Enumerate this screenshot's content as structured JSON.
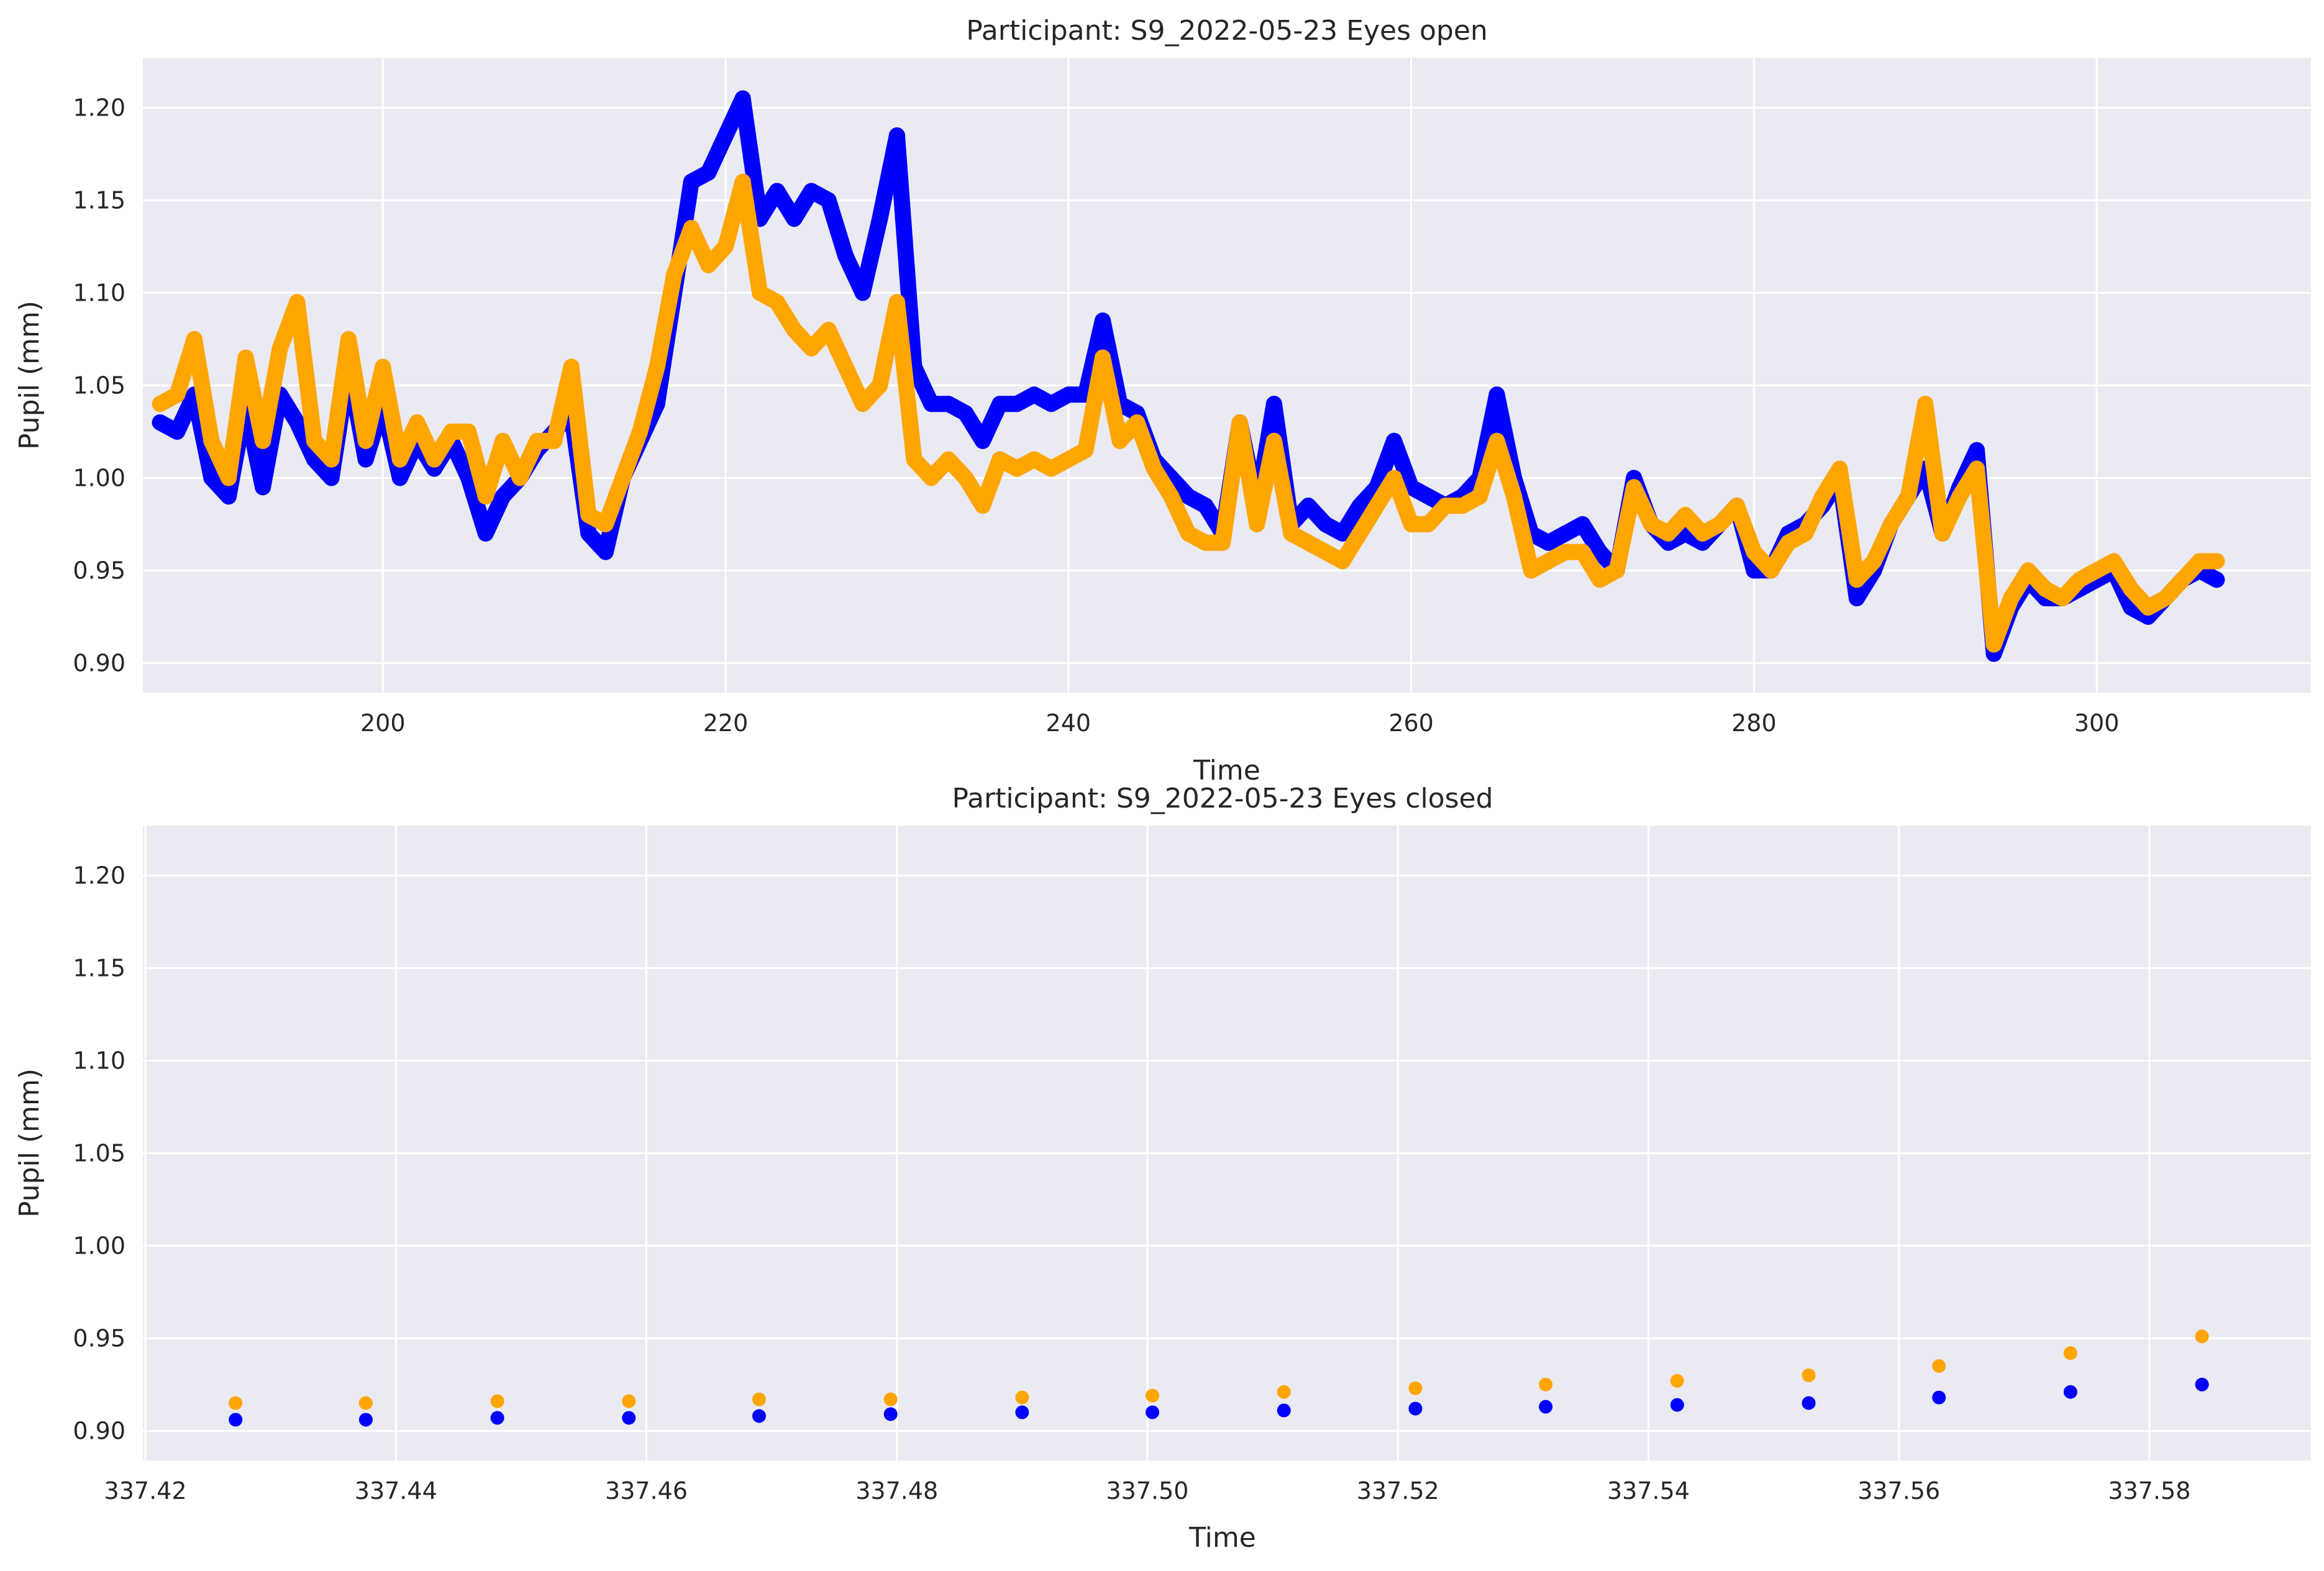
{
  "colors": {
    "background": "#eaeaf2",
    "grid": "#ffffff",
    "series_right": "#0000ff",
    "series_left": "#ffa500"
  },
  "chart_data": [
    {
      "type": "scatter",
      "title": "Participant: S9_2022-05-23 Eyes open",
      "xlabel": "Time",
      "ylabel": "Pupil (mm)",
      "xlim": [
        186,
        312.5
      ],
      "ylim": [
        0.884,
        1.227
      ],
      "xticks": [
        200,
        220,
        240,
        260,
        280,
        300
      ],
      "xtick_labels": [
        "200",
        "220",
        "240",
        "260",
        "280",
        "300"
      ],
      "yticks": [
        0.9,
        0.95,
        1.0,
        1.05,
        1.1,
        1.15,
        1.2
      ],
      "ytick_labels": [
        "0.90",
        "0.95",
        "1.00",
        "1.05",
        "1.10",
        "1.15",
        "1.20"
      ],
      "grid": true,
      "series": [
        {
          "color": "#0000ff",
          "points": [
            [
              187,
              1.03
            ],
            [
              188,
              1.025
            ],
            [
              189,
              1.045
            ],
            [
              190,
              1.0
            ],
            [
              191,
              0.99
            ],
            [
              192,
              1.04
            ],
            [
              193,
              0.995
            ],
            [
              194,
              1.045
            ],
            [
              195,
              1.03
            ],
            [
              196,
              1.01
            ],
            [
              197,
              1.0
            ],
            [
              198,
              1.06
            ],
            [
              199,
              1.01
            ],
            [
              200,
              1.04
            ],
            [
              201,
              1.0
            ],
            [
              202,
              1.02
            ],
            [
              203,
              1.005
            ],
            [
              204,
              1.02
            ],
            [
              205,
              1.0
            ],
            [
              206,
              0.97
            ],
            [
              207,
              0.99
            ],
            [
              208,
              1.0
            ],
            [
              209,
              1.015
            ],
            [
              210,
              1.025
            ],
            [
              211,
              1.035
            ],
            [
              212,
              0.97
            ],
            [
              213,
              0.96
            ],
            [
              214,
              1.0
            ],
            [
              215,
              1.02
            ],
            [
              216,
              1.04
            ],
            [
              217,
              1.1
            ],
            [
              218,
              1.16
            ],
            [
              219,
              1.165
            ],
            [
              220,
              1.185
            ],
            [
              221,
              1.205
            ],
            [
              222,
              1.14
            ],
            [
              223,
              1.155
            ],
            [
              224,
              1.14
            ],
            [
              225,
              1.155
            ],
            [
              226,
              1.15
            ],
            [
              227,
              1.12
            ],
            [
              228,
              1.1
            ],
            [
              229,
              1.14
            ],
            [
              230,
              1.185
            ],
            [
              231,
              1.06
            ],
            [
              232,
              1.04
            ],
            [
              233,
              1.04
            ],
            [
              234,
              1.035
            ],
            [
              235,
              1.02
            ],
            [
              236,
              1.04
            ],
            [
              237,
              1.04
            ],
            [
              238,
              1.045
            ],
            [
              239,
              1.04
            ],
            [
              240,
              1.045
            ],
            [
              241,
              1.045
            ],
            [
              242,
              1.085
            ],
            [
              243,
              1.04
            ],
            [
              244,
              1.035
            ],
            [
              245,
              1.01
            ],
            [
              246,
              1.0
            ],
            [
              247,
              0.99
            ],
            [
              248,
              0.985
            ],
            [
              249,
              0.97
            ],
            [
              250,
              1.03
            ],
            [
              251,
              0.985
            ],
            [
              252,
              1.04
            ],
            [
              253,
              0.975
            ],
            [
              254,
              0.985
            ],
            [
              255,
              0.975
            ],
            [
              256,
              0.97
            ],
            [
              257,
              0.985
            ],
            [
              258,
              0.995
            ],
            [
              259,
              1.02
            ],
            [
              260,
              0.995
            ],
            [
              261,
              0.99
            ],
            [
              262,
              0.985
            ],
            [
              263,
              0.99
            ],
            [
              264,
              1.0
            ],
            [
              265,
              1.045
            ],
            [
              266,
              1.0
            ],
            [
              267,
              0.97
            ],
            [
              268,
              0.965
            ],
            [
              269,
              0.97
            ],
            [
              270,
              0.975
            ],
            [
              271,
              0.96
            ],
            [
              272,
              0.95
            ],
            [
              273,
              1.0
            ],
            [
              274,
              0.975
            ],
            [
              275,
              0.965
            ],
            [
              276,
              0.97
            ],
            [
              277,
              0.965
            ],
            [
              278,
              0.975
            ],
            [
              279,
              0.985
            ],
            [
              280,
              0.95
            ],
            [
              281,
              0.95
            ],
            [
              282,
              0.97
            ],
            [
              283,
              0.975
            ],
            [
              284,
              0.985
            ],
            [
              285,
              1.0
            ],
            [
              286,
              0.935
            ],
            [
              287,
              0.95
            ],
            [
              288,
              0.975
            ],
            [
              289,
              0.99
            ],
            [
              290,
              1.005
            ],
            [
              291,
              0.97
            ],
            [
              292,
              0.995
            ],
            [
              293,
              1.015
            ],
            [
              294,
              0.905
            ],
            [
              295,
              0.93
            ],
            [
              296,
              0.945
            ],
            [
              297,
              0.935
            ],
            [
              298,
              0.935
            ],
            [
              299,
              0.94
            ],
            [
              300,
              0.945
            ],
            [
              301,
              0.95
            ],
            [
              302,
              0.93
            ],
            [
              303,
              0.925
            ],
            [
              304,
              0.935
            ],
            [
              305,
              0.945
            ],
            [
              306,
              0.95
            ],
            [
              307,
              0.945
            ]
          ]
        },
        {
          "color": "#ffa500",
          "points": [
            [
              187,
              1.04
            ],
            [
              188,
              1.045
            ],
            [
              189,
              1.075
            ],
            [
              190,
              1.02
            ],
            [
              191,
              1.0
            ],
            [
              192,
              1.065
            ],
            [
              193,
              1.02
            ],
            [
              194,
              1.07
            ],
            [
              195,
              1.095
            ],
            [
              196,
              1.02
            ],
            [
              197,
              1.01
            ],
            [
              198,
              1.075
            ],
            [
              199,
              1.02
            ],
            [
              200,
              1.06
            ],
            [
              201,
              1.01
            ],
            [
              202,
              1.03
            ],
            [
              203,
              1.01
            ],
            [
              204,
              1.025
            ],
            [
              205,
              1.025
            ],
            [
              206,
              0.99
            ],
            [
              207,
              1.02
            ],
            [
              208,
              1.0
            ],
            [
              209,
              1.02
            ],
            [
              210,
              1.02
            ],
            [
              211,
              1.06
            ],
            [
              212,
              0.98
            ],
            [
              213,
              0.975
            ],
            [
              214,
              1.0
            ],
            [
              215,
              1.025
            ],
            [
              216,
              1.06
            ],
            [
              217,
              1.11
            ],
            [
              218,
              1.135
            ],
            [
              219,
              1.115
            ],
            [
              220,
              1.125
            ],
            [
              221,
              1.16
            ],
            [
              222,
              1.1
            ],
            [
              223,
              1.095
            ],
            [
              224,
              1.08
            ],
            [
              225,
              1.07
            ],
            [
              226,
              1.08
            ],
            [
              227,
              1.06
            ],
            [
              228,
              1.04
            ],
            [
              229,
              1.05
            ],
            [
              230,
              1.095
            ],
            [
              231,
              1.01
            ],
            [
              232,
              1.0
            ],
            [
              233,
              1.01
            ],
            [
              234,
              1.0
            ],
            [
              235,
              0.985
            ],
            [
              236,
              1.01
            ],
            [
              237,
              1.005
            ],
            [
              238,
              1.01
            ],
            [
              239,
              1.005
            ],
            [
              240,
              1.01
            ],
            [
              241,
              1.015
            ],
            [
              242,
              1.065
            ],
            [
              243,
              1.02
            ],
            [
              244,
              1.03
            ],
            [
              245,
              1.005
            ],
            [
              246,
              0.99
            ],
            [
              247,
              0.97
            ],
            [
              248,
              0.965
            ],
            [
              249,
              0.965
            ],
            [
              250,
              1.03
            ],
            [
              251,
              0.975
            ],
            [
              252,
              1.02
            ],
            [
              253,
              0.97
            ],
            [
              254,
              0.965
            ],
            [
              255,
              0.96
            ],
            [
              256,
              0.955
            ],
            [
              257,
              0.97
            ],
            [
              258,
              0.985
            ],
            [
              259,
              1.0
            ],
            [
              260,
              0.975
            ],
            [
              261,
              0.975
            ],
            [
              262,
              0.985
            ],
            [
              263,
              0.985
            ],
            [
              264,
              0.99
            ],
            [
              265,
              1.02
            ],
            [
              266,
              0.99
            ],
            [
              267,
              0.95
            ],
            [
              268,
              0.955
            ],
            [
              269,
              0.96
            ],
            [
              270,
              0.96
            ],
            [
              271,
              0.945
            ],
            [
              272,
              0.95
            ],
            [
              273,
              0.995
            ],
            [
              274,
              0.975
            ],
            [
              275,
              0.97
            ],
            [
              276,
              0.98
            ],
            [
              277,
              0.97
            ],
            [
              278,
              0.975
            ],
            [
              279,
              0.985
            ],
            [
              280,
              0.96
            ],
            [
              281,
              0.95
            ],
            [
              282,
              0.965
            ],
            [
              283,
              0.97
            ],
            [
              284,
              0.99
            ],
            [
              285,
              1.005
            ],
            [
              286,
              0.945
            ],
            [
              287,
              0.955
            ],
            [
              288,
              0.975
            ],
            [
              289,
              0.99
            ],
            [
              290,
              1.04
            ],
            [
              291,
              0.97
            ],
            [
              292,
              0.99
            ],
            [
              293,
              1.005
            ],
            [
              294,
              0.91
            ],
            [
              295,
              0.935
            ],
            [
              296,
              0.95
            ],
            [
              297,
              0.94
            ],
            [
              298,
              0.935
            ],
            [
              299,
              0.945
            ],
            [
              300,
              0.95
            ],
            [
              301,
              0.955
            ],
            [
              302,
              0.94
            ],
            [
              303,
              0.93
            ],
            [
              304,
              0.935
            ],
            [
              305,
              0.945
            ],
            [
              306,
              0.955
            ],
            [
              307,
              0.955
            ]
          ]
        }
      ]
    },
    {
      "type": "scatter",
      "title": "Participant: S9_2022-05-23 Eyes closed",
      "xlabel": "Time",
      "ylabel": "Pupil (mm)",
      "xlim": [
        337.4198,
        337.5929
      ],
      "ylim": [
        0.884,
        1.227
      ],
      "xticks": [
        337.42,
        337.44,
        337.46,
        337.48,
        337.5,
        337.52,
        337.54,
        337.56,
        337.58
      ],
      "xtick_labels": [
        "337.42",
        "337.44",
        "337.46",
        "337.48",
        "337.50",
        "337.52",
        "337.54",
        "337.56",
        "337.58"
      ],
      "yticks": [
        0.9,
        0.95,
        1.0,
        1.05,
        1.1,
        1.15,
        1.2
      ],
      "ytick_labels": [
        "0.90",
        "0.95",
        "1.00",
        "1.05",
        "1.10",
        "1.15",
        "1.20"
      ],
      "grid": true,
      "series": [
        {
          "color": "#ffa500",
          "x": [
            337.4272,
            337.4376,
            337.4481,
            337.4586,
            337.469,
            337.4795,
            337.49,
            337.5004,
            337.5109,
            337.5214,
            337.5318,
            337.5423,
            337.5528,
            337.5632,
            337.5737,
            337.5842
          ],
          "y": [
            0.915,
            0.915,
            0.916,
            0.916,
            0.917,
            0.917,
            0.918,
            0.919,
            0.921,
            0.923,
            0.925,
            0.927,
            0.93,
            0.935,
            0.942,
            0.951
          ]
        },
        {
          "color": "#0000ff",
          "x": [
            337.4272,
            337.4376,
            337.4481,
            337.4586,
            337.469,
            337.4795,
            337.49,
            337.5004,
            337.5109,
            337.5214,
            337.5318,
            337.5423,
            337.5528,
            337.5632,
            337.5737,
            337.5842
          ],
          "y": [
            0.906,
            0.906,
            0.907,
            0.907,
            0.908,
            0.909,
            0.91,
            0.91,
            0.911,
            0.912,
            0.913,
            0.914,
            0.915,
            0.918,
            0.921,
            0.925
          ]
        }
      ]
    }
  ]
}
